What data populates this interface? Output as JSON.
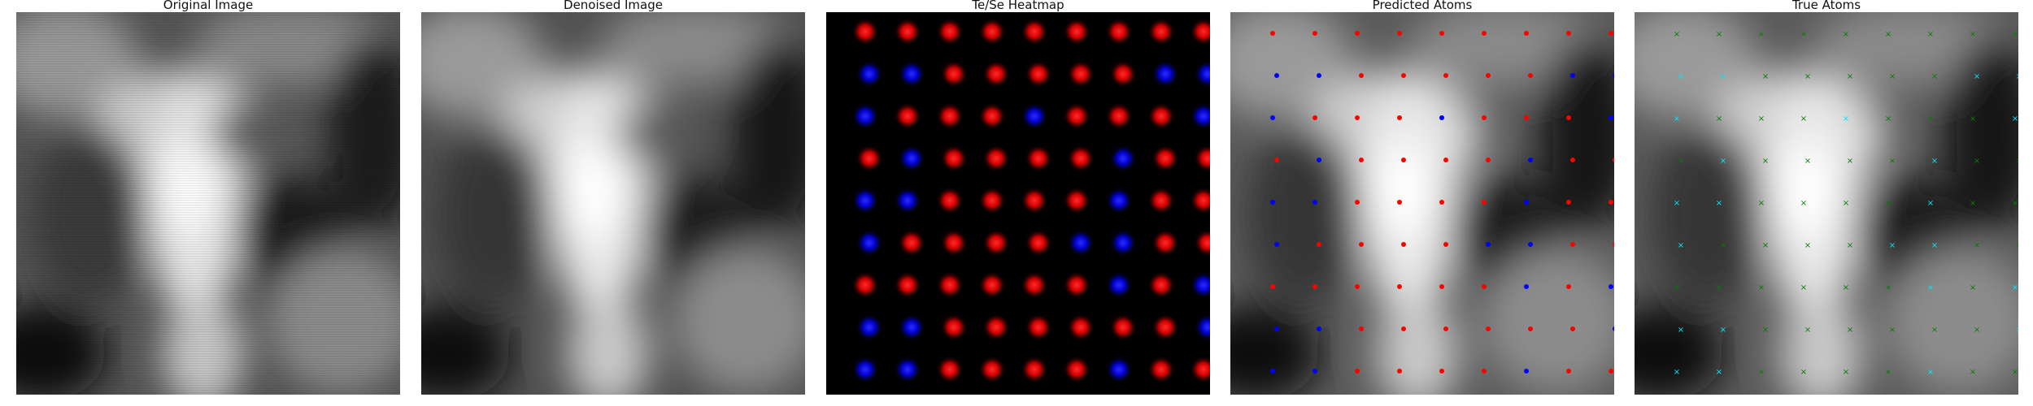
{
  "panels": {
    "original": {
      "title": "Original Image"
    },
    "denoised": {
      "title": "Denoised Image"
    },
    "heatmap": {
      "title": "Te/Se Heatmap"
    },
    "predicted": {
      "title": "Predicted Atoms"
    },
    "true": {
      "title": "True Atoms"
    }
  },
  "colors": {
    "background": "#000000",
    "te_marker": "#ff0000",
    "se_marker": "#0000ff",
    "true_te_marker": "#008000",
    "true_se_marker": "#00e5ff"
  }
}
